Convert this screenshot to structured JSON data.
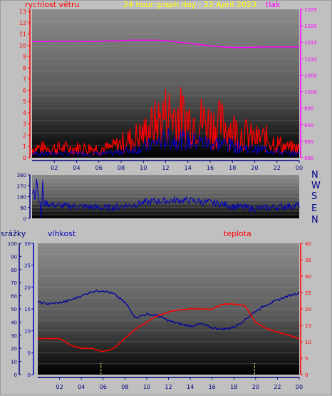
{
  "colors": {
    "wind": "#ff0000",
    "pressure": "#ff00ff",
    "direction": "#0000c0",
    "humidity": "#0000a0",
    "temperature": "#ff0000",
    "rain": "#0000ff",
    "title": "#ffff00",
    "dark_axis": "#000080",
    "precip_label": "#000080"
  },
  "top": {
    "title": "24 hour graph day : 22 April 2023",
    "left_label": "rychlost větru",
    "right_label": "tlak"
  },
  "mid": {
    "compass": [
      "N",
      "W",
      "S",
      "E",
      "N"
    ]
  },
  "bottom": {
    "label_rain": "srážky",
    "label_humidity": "vlhkost",
    "label_temperature": "teplota"
  },
  "chart_data": [
    {
      "type": "line",
      "title": "24 hour graph day : 22 April 2023",
      "x_ticks": [
        "02",
        "04",
        "06",
        "08",
        "10",
        "12",
        "14",
        "16",
        "18",
        "20",
        "22",
        "00"
      ],
      "y_ticks_left": [
        "0",
        "1",
        "2",
        "3",
        "4",
        "5",
        "6",
        "7",
        "8",
        "9",
        "10",
        "11",
        "12",
        "13"
      ],
      "y_ticks_right": [
        "980",
        "985",
        "990",
        "995",
        "1000",
        "1005",
        "1010",
        "1015",
        "1020",
        "1025"
      ],
      "ylim_left": [
        0,
        13.2
      ],
      "ylim_right": [
        980,
        1025
      ],
      "series": [
        {
          "name": "rychlost větru",
          "axis": "left",
          "x": [
            0,
            1,
            2,
            3,
            4,
            5,
            6,
            7,
            8,
            9,
            10,
            11,
            12,
            13,
            14,
            15,
            16,
            17,
            18,
            19,
            20,
            21,
            22,
            23,
            24
          ],
          "values": [
            1,
            1,
            1,
            1,
            1,
            1,
            1,
            1,
            1.5,
            2,
            2.5,
            3.5,
            4.5,
            4.5,
            4,
            4,
            3.5,
            3.5,
            3,
            2.5,
            2,
            2,
            1.5,
            1,
            1
          ]
        },
        {
          "name": "tlak",
          "axis": "right",
          "x": [
            0,
            1,
            2,
            3,
            4,
            5,
            6,
            7,
            8,
            9,
            10,
            11,
            12,
            13,
            14,
            15,
            16,
            17,
            18,
            19,
            20,
            21,
            22,
            23,
            24
          ],
          "values": [
            1015.2,
            1015.2,
            1015.3,
            1015.3,
            1015.3,
            1015.2,
            1015.3,
            1015.4,
            1015.5,
            1015.6,
            1015.6,
            1015.6,
            1015.5,
            1015.1,
            1014.7,
            1014.3,
            1013.9,
            1013.6,
            1013.4,
            1013.4,
            1013.5,
            1013.6,
            1013.6,
            1013.6,
            1013.6
          ]
        }
      ]
    },
    {
      "type": "line",
      "title": "",
      "y_ticks": [
        "0",
        "90",
        "180",
        "270",
        "360"
      ],
      "ylim": [
        0,
        360
      ],
      "series": [
        {
          "name": "",
          "x": [
            0,
            1,
            2,
            3,
            4,
            5,
            6,
            7,
            8,
            9,
            10,
            11,
            12,
            13,
            14,
            15,
            16,
            17,
            18,
            19,
            20,
            21,
            22,
            23,
            24
          ],
          "values": [
            200,
            130,
            110,
            100,
            100,
            95,
            90,
            85,
            100,
            110,
            130,
            140,
            145,
            150,
            150,
            140,
            130,
            120,
            100,
            90,
            80,
            85,
            95,
            100,
            110
          ]
        }
      ]
    },
    {
      "type": "line",
      "title": "",
      "x_ticks": [
        "02",
        "04",
        "06",
        "08",
        "10",
        "12",
        "14",
        "16",
        "18",
        "20",
        "22",
        "00"
      ],
      "y_ticks_rain": [
        "0",
        "10",
        "20",
        "30",
        "40",
        "50",
        "60",
        "70",
        "80",
        "90",
        "100"
      ],
      "y_ticks_humidity": [
        "0",
        "5",
        "10",
        "15",
        "20",
        "25",
        "30"
      ],
      "y_ticks_temperature": [
        "0",
        "5",
        "10",
        "15",
        "20",
        "25",
        "30",
        "35",
        "40"
      ],
      "ylim_humidity": [
        0,
        30
      ],
      "ylim_temperature": [
        0,
        40
      ],
      "series": [
        {
          "name": "vlhkost",
          "axis": "humidity",
          "x": [
            0,
            1,
            2,
            3,
            4,
            5,
            6,
            7,
            8,
            9,
            10,
            11,
            12,
            13,
            14,
            15,
            16,
            17,
            18,
            19,
            20,
            21,
            22,
            23,
            24
          ],
          "values": [
            16.5,
            16.2,
            16.4,
            17.0,
            18.0,
            19.0,
            19.2,
            18.4,
            16.5,
            13.0,
            13.8,
            13.5,
            12.3,
            11.6,
            11.1,
            11.6,
            10.7,
            10.4,
            10.8,
            12.5,
            14.5,
            16.0,
            17.0,
            18.0,
            18.7
          ]
        },
        {
          "name": "teplota",
          "axis": "temperature",
          "x": [
            0,
            1,
            2,
            3,
            4,
            5,
            6,
            7,
            8,
            9,
            10,
            11,
            12,
            13,
            14,
            15,
            16,
            17,
            18,
            19,
            20,
            21,
            22,
            23,
            24
          ],
          "values": [
            11,
            11,
            11,
            9,
            8,
            8,
            7,
            8,
            11,
            14,
            16,
            18,
            19,
            19.8,
            20,
            20,
            20,
            21.5,
            21.5,
            21,
            16,
            14,
            13,
            12,
            11
          ]
        },
        {
          "name": "srážky",
          "axis": "rain",
          "x": [
            5.8,
            19.9
          ],
          "values": [
            0,
            0
          ]
        }
      ]
    }
  ]
}
